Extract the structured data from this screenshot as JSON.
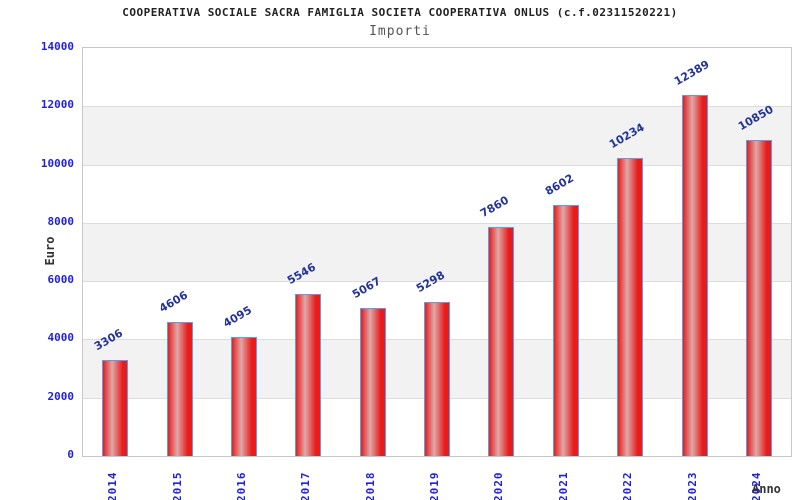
{
  "header": {
    "title": "COOPERATIVA SOCIALE SACRA FAMIGLIA SOCIETA COOPERATIVA ONLUS (c.f.02311520221)",
    "subtitle": "Importi"
  },
  "axes": {
    "y_label": "Euro",
    "x_label": "Anno"
  },
  "chart_data": {
    "type": "bar",
    "title": "COOPERATIVA SOCIALE SACRA FAMIGLIA SOCIETA COOPERATIVA ONLUS (c.f.02311520221)",
    "subtitle": "Importi",
    "xlabel": "Anno",
    "ylabel": "Euro",
    "categories": [
      "2014",
      "2015",
      "2016",
      "2017",
      "2018",
      "2019",
      "2020",
      "2021",
      "2022",
      "2023",
      "2024"
    ],
    "values": [
      3306,
      4606,
      4095,
      5546,
      5067,
      5298,
      7860,
      8602,
      10234,
      12389,
      10850
    ],
    "ylim": [
      0,
      14000
    ],
    "y_ticks": [
      0,
      2000,
      4000,
      6000,
      8000,
      10000,
      12000,
      14000
    ],
    "grid": true,
    "alternating_bands": true,
    "legend_position": "none",
    "value_labels_rotation_deg": -30,
    "category_labels_rotation_deg": -90
  },
  "colors": {
    "bar_fill": "#e81c1c",
    "bar_highlight": "#dfa8a8",
    "bar_border": "#55a0e8",
    "tick_label": "#2222dd",
    "value_label": "#223399",
    "band_fill": "#f2f2f2",
    "grid_line": "#dcdcdc",
    "plot_border": "#c8c8c8",
    "title_color": "#222222",
    "subtitle_color": "#555555",
    "axis_title_color": "#333333"
  }
}
